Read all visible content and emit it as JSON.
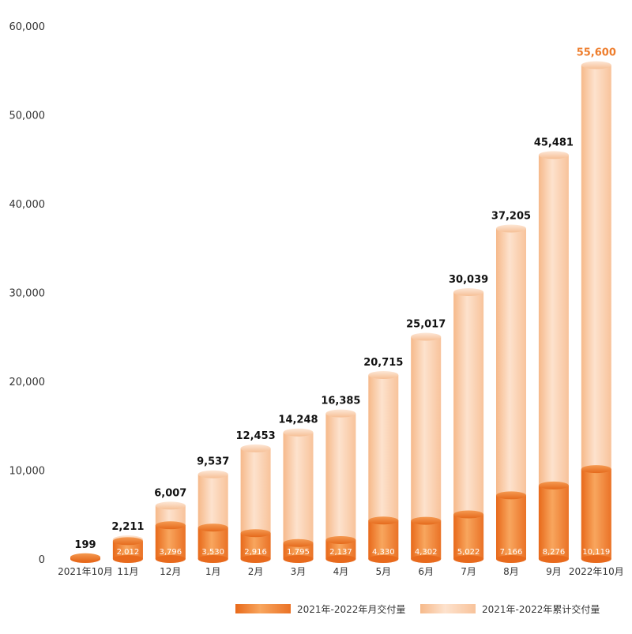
{
  "chart_data": {
    "type": "bar",
    "categories": [
      "2021年10月",
      "11月",
      "12月",
      "1月",
      "2月",
      "3月",
      "4月",
      "5月",
      "6月",
      "7月",
      "8月",
      "9月",
      "2022年10月"
    ],
    "series": [
      {
        "name": "2021年-2022年月交付量",
        "values": [
          199,
          2012,
          3796,
          3530,
          2916,
          1795,
          2137,
          4330,
          4302,
          5022,
          7166,
          8276,
          10119
        ],
        "labels": [
          "",
          "2,012",
          "3,796",
          "3,530",
          "2,916",
          "1,795",
          "2,137",
          "4,330",
          "4,302",
          "5,022",
          "7,166",
          "8,276",
          "10,119"
        ],
        "color": "#ee7d2c"
      },
      {
        "name": "2021年-2022年累计交付量",
        "values": [
          199,
          2211,
          6007,
          9537,
          12453,
          14248,
          16385,
          20715,
          25017,
          30039,
          37205,
          45481,
          55600
        ],
        "labels": [
          "199",
          "2,211",
          "6,007",
          "9,537",
          "12,453",
          "14,248",
          "16,385",
          "20,715",
          "25,017",
          "30,039",
          "37,205",
          "45,481",
          "55,600"
        ],
        "color": "#f9c9a2"
      }
    ],
    "y_ticks": [
      0,
      10000,
      20000,
      30000,
      40000,
      50000,
      60000
    ],
    "y_tick_labels": [
      "0",
      "10,000",
      "20,000",
      "30,000",
      "40,000",
      "50,000",
      "60,000"
    ],
    "ylim": [
      0,
      60000
    ],
    "highlight_last_label_color": "#ee7d2c",
    "grid": false,
    "legend_position": "bottom-right"
  }
}
